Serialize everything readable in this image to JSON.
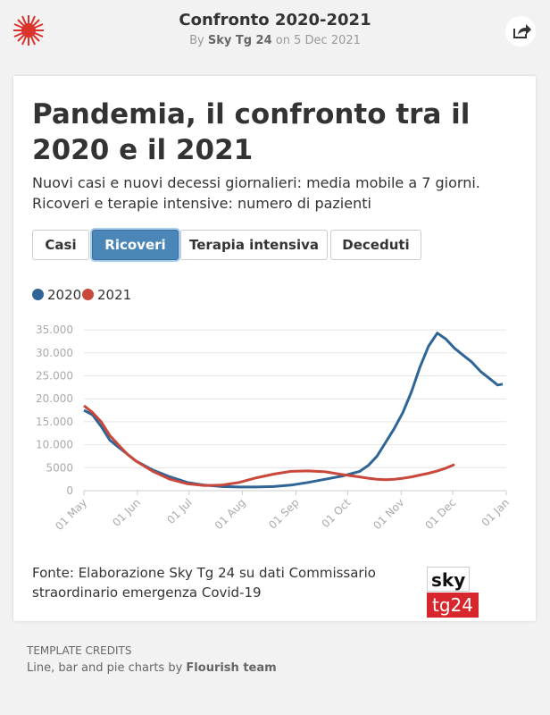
{
  "header": {
    "title": "Confronto 2020-2021",
    "by": "By",
    "author": "Sky Tg 24",
    "on": "on",
    "date": "5 Dec 2021"
  },
  "card": {
    "title": "Pandemia, il confronto tra il 2020 e il 2021",
    "subtitle": "Nuovi casi e nuovi decessi giornalieri: media mobile a 7 giorni. Ricoveri e terapie intensive: numero di pazienti",
    "buttons": [
      "Casi",
      "Ricoveri",
      "Terapia intensiva",
      "Deceduti"
    ],
    "source": "Fonte: Elaborazione Sky Tg 24 su dati Commissario straordinario emergenza Covid-19",
    "logo": [
      "sky",
      "tg24"
    ]
  },
  "chart_data": {
    "type": "line",
    "x": [
      0,
      5,
      10,
      15,
      20,
      25,
      30,
      40,
      50,
      60,
      70,
      80,
      90,
      100,
      110,
      120,
      130,
      140,
      150,
      160,
      165,
      170,
      175,
      180,
      185,
      190,
      195,
      200,
      205,
      210,
      215,
      220,
      225,
      230,
      235,
      240,
      243
    ],
    "series": [
      {
        "name": "2020",
        "color": "#2f6496",
        "values": [
          17500,
          16500,
          14000,
          11000,
          9500,
          8000,
          6500,
          4500,
          3000,
          1800,
          1200,
          900,
          800,
          800,
          900,
          1200,
          1800,
          2500,
          3200,
          4200,
          5500,
          7500,
          10500,
          13500,
          17000,
          21500,
          27000,
          31500,
          34300,
          33000,
          31000,
          29500,
          28000,
          26000,
          24500,
          23000,
          23200
        ]
      },
      {
        "name": "2021",
        "color": "#c9483b",
        "values": [
          18500,
          17000,
          15000,
          12000,
          10000,
          8000,
          6500,
          4200,
          2500,
          1500,
          1100,
          1200,
          1800,
          2800,
          3600,
          4200,
          4300,
          4100,
          3500,
          3000,
          2700,
          2500,
          2400,
          2500,
          2700,
          3000,
          3400,
          3800,
          4300,
          4900,
          5700,
          null,
          null,
          null,
          null,
          null,
          null
        ]
      }
    ],
    "xlim": [
      0,
      245
    ],
    "xticks": [
      {
        "value": 0,
        "label": "01 May"
      },
      {
        "value": 31,
        "label": "01 Jun"
      },
      {
        "value": 61,
        "label": "01 Jul"
      },
      {
        "value": 92,
        "label": "01 Aug"
      },
      {
        "value": 123,
        "label": "01 Sep"
      },
      {
        "value": 153,
        "label": "01 Oct"
      },
      {
        "value": 184,
        "label": "01 Nov"
      },
      {
        "value": 214,
        "label": "01 Dec"
      },
      {
        "value": 245,
        "label": "01 Jan"
      }
    ],
    "ylim": [
      0,
      36000
    ],
    "yticks": [
      0,
      5000,
      {
        "value": 10000,
        "label": "10.000"
      },
      {
        "value": 15000,
        "label": "15.000"
      },
      {
        "value": 20000,
        "label": "20.000"
      },
      {
        "value": 25000,
        "label": "25.000"
      },
      {
        "value": 30000,
        "label": "30.000"
      },
      {
        "value": 35000,
        "label": "35.000"
      }
    ],
    "grid": true
  },
  "credits": {
    "heading": "TEMPLATE CREDITS",
    "text": "Line, bar and pie charts by",
    "team": "Flourish team"
  }
}
